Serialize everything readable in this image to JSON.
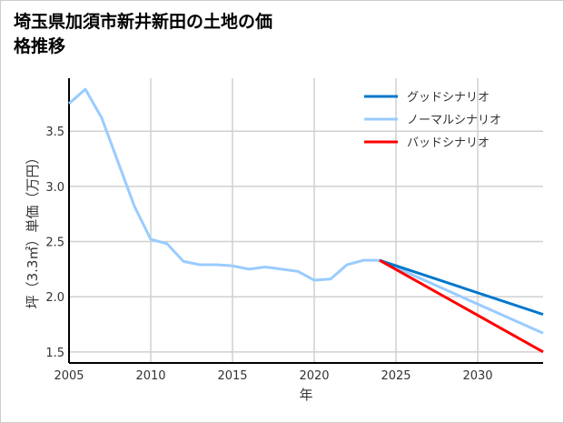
{
  "chart_data": {
    "type": "line",
    "title": "埼玉県加須市新井新田の土地の価格推移",
    "xlabel": "年",
    "ylabel": "坪（3.3㎡）単価（万円）",
    "xlim": [
      2005,
      2034
    ],
    "ylim": [
      1.4,
      3.98
    ],
    "xticks": [
      2005,
      2010,
      2015,
      2020,
      2025,
      2030
    ],
    "yticks": [
      1.5,
      2.0,
      2.5,
      3.0,
      3.5
    ],
    "grid": true,
    "legend_position": "top-right",
    "series": [
      {
        "name": "グッドシナリオ",
        "color": "#0077cc",
        "x": [
          2024,
          2034
        ],
        "y": [
          2.33,
          1.84
        ]
      },
      {
        "name": "ノーマルシナリオ",
        "color": "#99ccff",
        "x": [
          2005,
          2006,
          2007,
          2008,
          2009,
          2010,
          2011,
          2012,
          2013,
          2014,
          2015,
          2016,
          2017,
          2018,
          2019,
          2020,
          2021,
          2022,
          2023,
          2024,
          2034
        ],
        "y": [
          3.75,
          3.88,
          3.62,
          3.22,
          2.82,
          2.52,
          2.48,
          2.32,
          2.29,
          2.29,
          2.28,
          2.25,
          2.27,
          2.25,
          2.23,
          2.15,
          2.16,
          2.29,
          2.33,
          2.33,
          1.67
        ]
      },
      {
        "name": "バッドシナリオ",
        "color": "#ff0000",
        "x": [
          2024,
          2034
        ],
        "y": [
          2.33,
          1.5
        ]
      }
    ]
  }
}
